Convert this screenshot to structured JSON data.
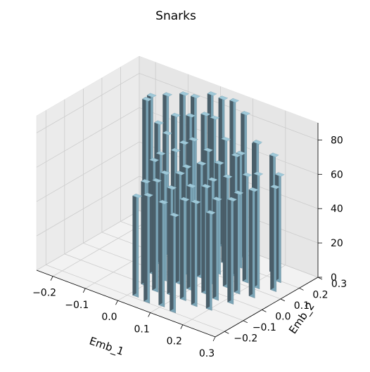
{
  "chart_data": {
    "type": "bar3d",
    "title": "Snarks",
    "xlabel": "Emb_1",
    "ylabel": "Emb_2",
    "zlabel": "",
    "xlim": [
      -0.25,
      0.3
    ],
    "ylim": [
      -0.25,
      0.3
    ],
    "zlim": [
      0,
      90
    ],
    "xticks": [
      "−0.2",
      "−0.1",
      "0.0",
      "0.1",
      "0.2",
      "0.3"
    ],
    "yticks": [
      "−0.2",
      "−0.1",
      "0.0",
      "0.1",
      "0.2",
      "0.3"
    ],
    "zticks": [
      "0",
      "20",
      "40",
      "60",
      "80"
    ],
    "xtick_values": [
      -0.2,
      -0.1,
      0.0,
      0.1,
      0.2,
      0.3
    ],
    "ytick_values": [
      -0.2,
      -0.1,
      0.0,
      0.1,
      0.2,
      0.3
    ],
    "ztick_values": [
      0,
      20,
      40,
      60,
      80
    ],
    "grid": true,
    "bar_color": "#9ec8d8",
    "bar_side_color": "#4a5e69",
    "bar_front_color": "#7aa4b6",
    "series": [
      {
        "points": [
          {
            "x": -0.2,
            "y": 0.28,
            "z": 72
          },
          {
            "x": -0.18,
            "y": 0.22,
            "z": 75
          },
          {
            "x": -0.14,
            "y": 0.26,
            "z": 78
          },
          {
            "x": -0.1,
            "y": 0.28,
            "z": 80
          },
          {
            "x": -0.06,
            "y": 0.27,
            "z": 82
          },
          {
            "x": -0.02,
            "y": 0.29,
            "z": 85
          },
          {
            "x": 0.02,
            "y": 0.28,
            "z": 86
          },
          {
            "x": 0.06,
            "y": 0.27,
            "z": 88
          },
          {
            "x": 0.1,
            "y": 0.26,
            "z": 84
          },
          {
            "x": 0.14,
            "y": 0.25,
            "z": 70
          },
          {
            "x": -0.12,
            "y": 0.18,
            "z": 68
          },
          {
            "x": -0.08,
            "y": 0.2,
            "z": 74
          },
          {
            "x": -0.04,
            "y": 0.21,
            "z": 76
          },
          {
            "x": 0.0,
            "y": 0.22,
            "z": 79
          },
          {
            "x": 0.04,
            "y": 0.2,
            "z": 81
          },
          {
            "x": 0.08,
            "y": 0.19,
            "z": 72
          },
          {
            "x": 0.12,
            "y": 0.2,
            "z": 66
          },
          {
            "x": 0.16,
            "y": 0.22,
            "z": 74
          },
          {
            "x": 0.2,
            "y": 0.24,
            "z": 68
          },
          {
            "x": 0.24,
            "y": 0.2,
            "z": 62
          },
          {
            "x": -0.06,
            "y": 0.12,
            "z": 70
          },
          {
            "x": -0.02,
            "y": 0.14,
            "z": 66
          },
          {
            "x": 0.02,
            "y": 0.12,
            "z": 72
          },
          {
            "x": 0.06,
            "y": 0.13,
            "z": 68
          },
          {
            "x": 0.1,
            "y": 0.12,
            "z": 64
          },
          {
            "x": 0.14,
            "y": 0.14,
            "z": 70
          },
          {
            "x": 0.18,
            "y": 0.13,
            "z": 62
          },
          {
            "x": 0.22,
            "y": 0.12,
            "z": 66
          },
          {
            "x": 0.26,
            "y": 0.14,
            "z": 60
          },
          {
            "x": -0.04,
            "y": 0.05,
            "z": 64
          },
          {
            "x": 0.0,
            "y": 0.06,
            "z": 68
          },
          {
            "x": 0.04,
            "y": 0.05,
            "z": 62
          },
          {
            "x": 0.08,
            "y": 0.06,
            "z": 66
          },
          {
            "x": 0.12,
            "y": 0.05,
            "z": 60
          },
          {
            "x": 0.16,
            "y": 0.06,
            "z": 64
          },
          {
            "x": 0.2,
            "y": 0.05,
            "z": 58
          },
          {
            "x": 0.24,
            "y": 0.06,
            "z": 62
          },
          {
            "x": -0.02,
            "y": -0.02,
            "z": 66
          },
          {
            "x": 0.02,
            "y": -0.03,
            "z": 62
          },
          {
            "x": 0.06,
            "y": -0.02,
            "z": 64
          },
          {
            "x": 0.1,
            "y": -0.03,
            "z": 60
          },
          {
            "x": 0.14,
            "y": -0.02,
            "z": 62
          },
          {
            "x": 0.18,
            "y": -0.03,
            "z": 58
          },
          {
            "x": 0.22,
            "y": -0.02,
            "z": 60
          },
          {
            "x": 0.0,
            "y": -0.1,
            "z": 60
          },
          {
            "x": 0.04,
            "y": -0.11,
            "z": 64
          },
          {
            "x": 0.08,
            "y": -0.1,
            "z": 62
          },
          {
            "x": 0.12,
            "y": -0.1,
            "z": 58
          },
          {
            "x": 0.16,
            "y": -0.11,
            "z": 60
          },
          {
            "x": 0.2,
            "y": -0.1,
            "z": 56
          },
          {
            "x": 0.02,
            "y": -0.18,
            "z": 58
          },
          {
            "x": 0.06,
            "y": -0.19,
            "z": 62
          },
          {
            "x": 0.1,
            "y": -0.18,
            "z": 60
          },
          {
            "x": 0.14,
            "y": -0.19,
            "z": 56
          }
        ]
      }
    ]
  }
}
